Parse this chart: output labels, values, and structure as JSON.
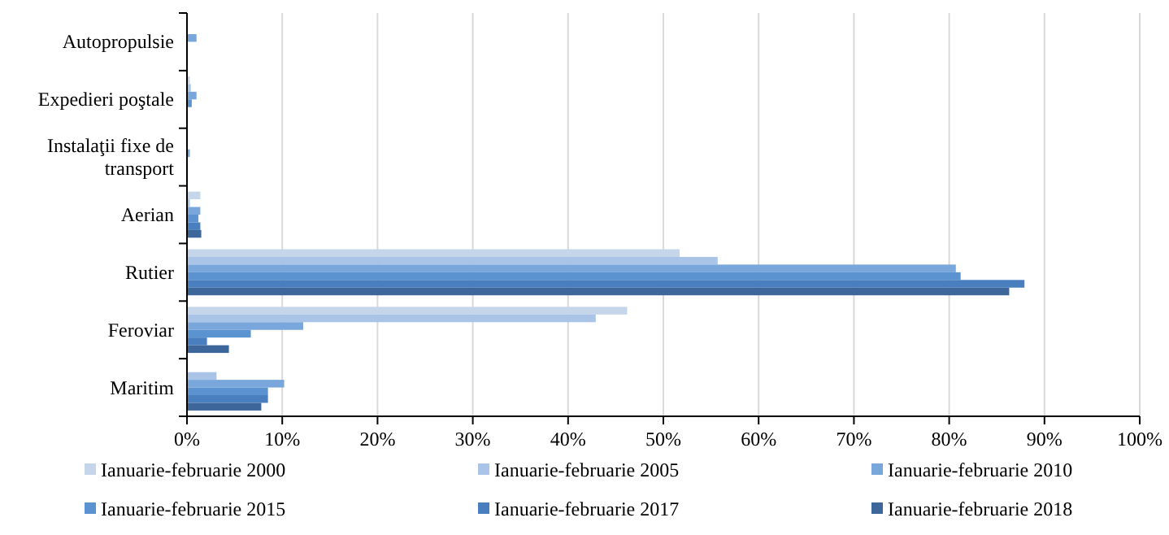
{
  "chart_data": {
    "type": "bar",
    "orientation": "horizontal",
    "categories": [
      "Autopropulsie",
      "Expedieri poştale",
      "Instalaţii fixe de transport",
      "Aerian",
      "Rutier",
      "Feroviar",
      "Maritim"
    ],
    "series": [
      {
        "name": "Ianuarie-februarie 2000",
        "color": "#c5d5ea",
        "values": [
          null,
          0.3,
          0,
          1.4,
          51.7,
          46.2,
          0
        ]
      },
      {
        "name": "Ianuarie-februarie 2005",
        "color": "#a9c4e6",
        "values": [
          null,
          0.4,
          0,
          0.3,
          55.7,
          42.9,
          3.1
        ]
      },
      {
        "name": "Ianuarie-februarie 2010",
        "color": "#7aa7db",
        "values": [
          1.0,
          1.0,
          0.3,
          1.4,
          80.7,
          12.2,
          10.2
        ]
      },
      {
        "name": "Ianuarie-februarie 2015",
        "color": "#5b93d0",
        "values": [
          0,
          0.5,
          0,
          1.2,
          81.2,
          6.7,
          8.5
        ]
      },
      {
        "name": "Ianuarie-februarie 2017",
        "color": "#4a7fbf",
        "values": [
          0,
          null,
          0,
          1.4,
          87.9,
          2.1,
          8.5
        ]
      },
      {
        "name": "Ianuarie-februarie 2018",
        "color": "#3d679a",
        "values": [
          0,
          null,
          0,
          1.5,
          86.3,
          4.4,
          7.8
        ]
      }
    ],
    "xlim": [
      0,
      100
    ],
    "xticks": [
      {
        "value": 0,
        "label": "0%"
      },
      {
        "value": 10,
        "label": "10%"
      },
      {
        "value": 20,
        "label": "20%"
      },
      {
        "value": 30,
        "label": "30%"
      },
      {
        "value": 40,
        "label": "40%"
      },
      {
        "value": 50,
        "label": "50%"
      },
      {
        "value": 60,
        "label": "60%"
      },
      {
        "value": 70,
        "label": "70%"
      },
      {
        "value": 80,
        "label": "80%"
      },
      {
        "value": 90,
        "label": "90%"
      },
      {
        "value": 100,
        "label": "100%"
      }
    ],
    "grid": "x",
    "legend": "bottom"
  }
}
